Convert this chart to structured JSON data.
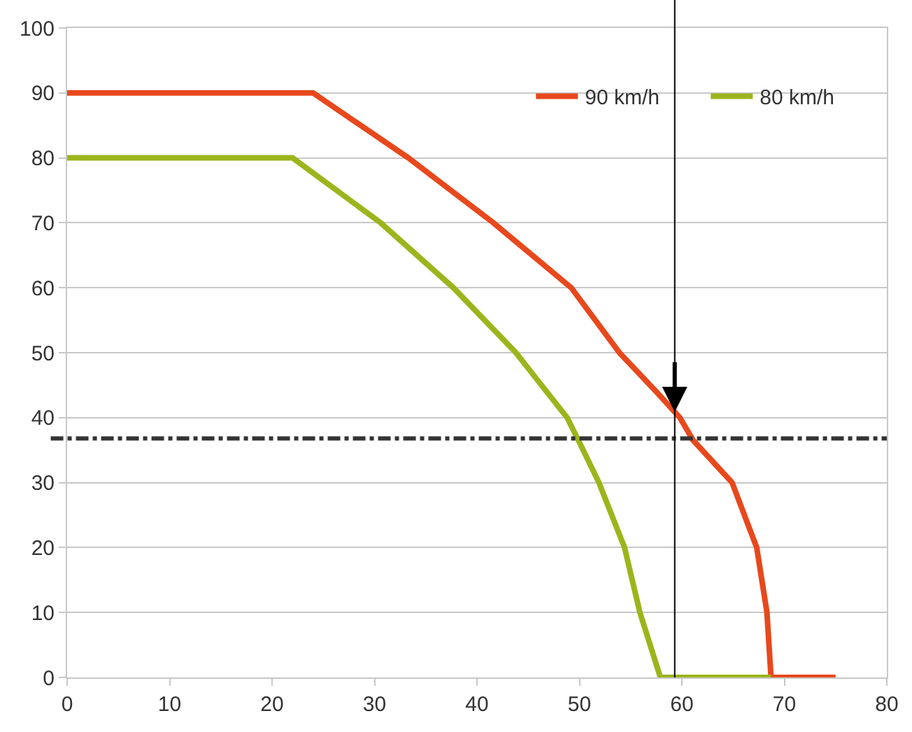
{
  "chart_data": {
    "type": "line",
    "series": [
      {
        "name": "90 km/h",
        "color": "#e8481c",
        "x": [
          0,
          24,
          33.3,
          41.6,
          49.2,
          53.9,
          57.5,
          59.8,
          61.1,
          64.9,
          67.3,
          68.3,
          68.7,
          75
        ],
        "values": [
          90,
          90,
          80,
          70,
          60,
          50,
          44,
          40,
          36.5,
          30,
          20,
          10,
          0,
          0
        ]
      },
      {
        "name": "80 km/h",
        "color": "#9bb51c",
        "x": [
          0,
          22,
          30.6,
          37.7,
          43.8,
          48.8,
          49.9,
          51.9,
          54.4,
          55.9,
          57.9,
          68.7
        ],
        "values": [
          80,
          80,
          70,
          60,
          50,
          40,
          36.5,
          30,
          20,
          10,
          0,
          0
        ]
      }
    ],
    "xlim": [
      0,
      80
    ],
    "xticks": [
      0,
      10,
      20,
      30,
      40,
      50,
      60,
      70,
      80
    ],
    "ylim": [
      0,
      100
    ],
    "yticks": [
      0,
      10,
      20,
      30,
      40,
      50,
      60,
      70,
      80,
      90,
      100
    ],
    "grid": "y",
    "legend": "top right",
    "marker": "none",
    "line_style": "solid",
    "ref_lines": [
      {
        "axis": "y",
        "value": 36.8,
        "color": "#333333",
        "line_style": "dashed"
      },
      {
        "axis": "x",
        "value": 59.3,
        "color": "#000000",
        "line_style": "solid"
      }
    ]
  }
}
